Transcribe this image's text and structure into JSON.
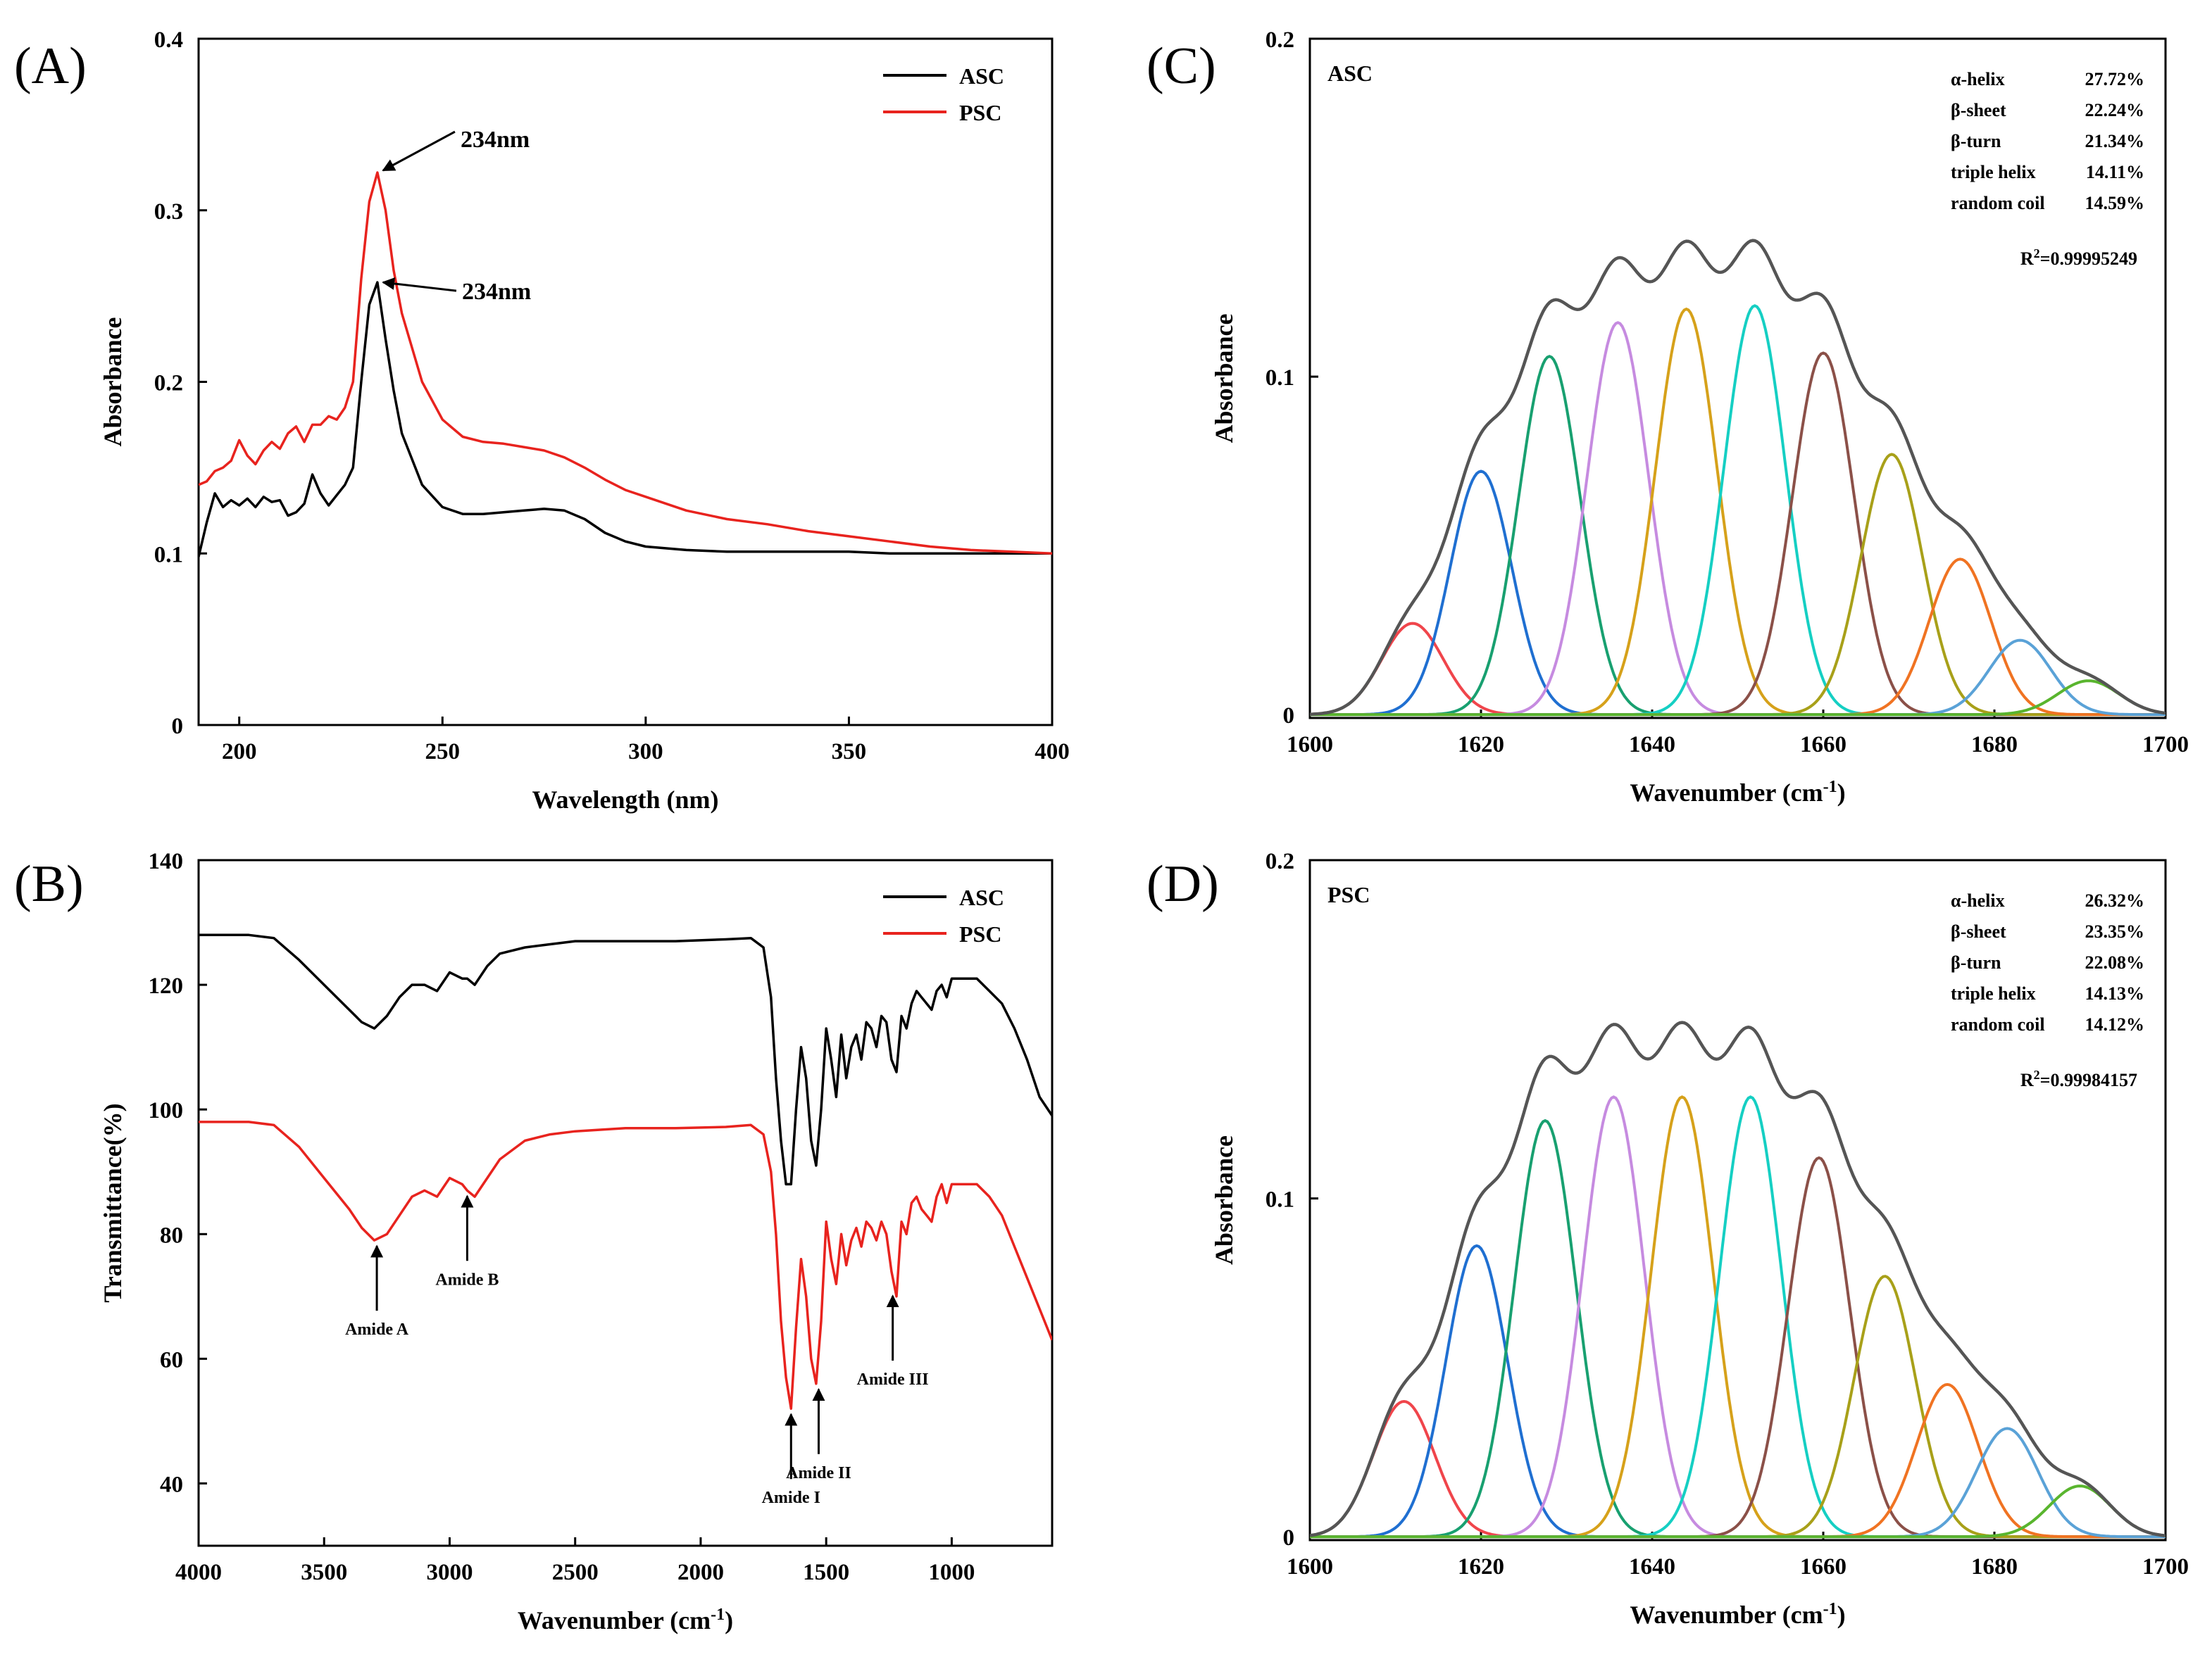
{
  "colors": {
    "asc": "#000000",
    "psc": "#e8231e",
    "envelope": "#555555",
    "bands": [
      "#f0454b",
      "#1f6fd1",
      "#18a070",
      "#c68be0",
      "#d6a11a",
      "#15cfc3",
      "#8b5048",
      "#a8a019",
      "#f07322",
      "#5aa2d7",
      "#59b52e"
    ]
  },
  "chart_data": [
    {
      "id": "A",
      "type": "line",
      "panel_label": "(A)",
      "xlabel": "Wavelength (nm)",
      "ylabel": "Absorbance",
      "xlim": [
        190,
        400
      ],
      "ylim": [
        0,
        0.4
      ],
      "xticks": [
        {
          "v": 200,
          "label": "200"
        },
        {
          "v": 250,
          "label": "250"
        },
        {
          "v": 300,
          "label": "300"
        },
        {
          "v": 350,
          "label": "350"
        },
        {
          "v": 400,
          "label": "400"
        }
      ],
      "yticks": [
        {
          "v": 0,
          "label": "0"
        },
        {
          "v": 0.1,
          "label": "0.1"
        },
        {
          "v": 0.2,
          "label": "0.2"
        },
        {
          "v": 0.3,
          "label": "0.3"
        },
        {
          "v": 0.4,
          "label": "0.4"
        }
      ],
      "legend": [
        "ASC",
        "PSC"
      ],
      "series": [
        {
          "name": "ASC",
          "x": [
            190,
            192,
            194,
            196,
            198,
            200,
            202,
            204,
            206,
            208,
            210,
            212,
            214,
            216,
            218,
            220,
            222,
            224,
            226,
            228,
            230,
            232,
            234,
            236,
            238,
            240,
            245,
            250,
            255,
            260,
            265,
            270,
            275,
            280,
            285,
            290,
            295,
            300,
            310,
            320,
            330,
            340,
            350,
            360,
            370,
            380,
            390,
            400
          ],
          "y": [
            0.098,
            0.118,
            0.135,
            0.127,
            0.131,
            0.128,
            0.132,
            0.127,
            0.133,
            0.13,
            0.131,
            0.122,
            0.124,
            0.129,
            0.146,
            0.135,
            0.128,
            0.134,
            0.14,
            0.15,
            0.2,
            0.245,
            0.258,
            0.225,
            0.195,
            0.17,
            0.14,
            0.127,
            0.123,
            0.123,
            0.124,
            0.125,
            0.126,
            0.125,
            0.12,
            0.112,
            0.107,
            0.104,
            0.102,
            0.101,
            0.101,
            0.101,
            0.101,
            0.1,
            0.1,
            0.1,
            0.1,
            0.1
          ]
        },
        {
          "name": "PSC",
          "x": [
            190,
            192,
            194,
            196,
            198,
            200,
            202,
            204,
            206,
            208,
            210,
            212,
            214,
            216,
            218,
            220,
            222,
            224,
            226,
            228,
            230,
            232,
            234,
            236,
            238,
            240,
            245,
            250,
            255,
            260,
            265,
            270,
            275,
            280,
            285,
            290,
            295,
            300,
            310,
            320,
            330,
            340,
            350,
            360,
            370,
            380,
            390,
            400
          ],
          "y": [
            0.14,
            0.142,
            0.148,
            0.15,
            0.154,
            0.166,
            0.157,
            0.152,
            0.16,
            0.165,
            0.161,
            0.17,
            0.174,
            0.165,
            0.175,
            0.175,
            0.18,
            0.178,
            0.185,
            0.2,
            0.26,
            0.305,
            0.322,
            0.3,
            0.265,
            0.24,
            0.2,
            0.178,
            0.168,
            0.165,
            0.164,
            0.162,
            0.16,
            0.156,
            0.15,
            0.143,
            0.137,
            0.133,
            0.125,
            0.12,
            0.117,
            0.113,
            0.11,
            0.107,
            0.104,
            0.102,
            0.101,
            0.1
          ]
        }
      ],
      "annotations": [
        {
          "text": "234nm",
          "series": "PSC",
          "x": 234,
          "y": 0.322
        },
        {
          "text": "234nm",
          "series": "ASC",
          "x": 234,
          "y": 0.258
        }
      ]
    },
    {
      "id": "B",
      "type": "line",
      "panel_label": "(B)",
      "xlabel": "Wavenumber (cm",
      "xlabel_sup": "-1",
      "xlabel_end": ")",
      "ylabel": "Transmittance(%)",
      "xlim": [
        4000,
        600
      ],
      "ylim": [
        30,
        140
      ],
      "xticks": [
        {
          "v": 4000,
          "label": "4000"
        },
        {
          "v": 3500,
          "label": "3500"
        },
        {
          "v": 3000,
          "label": "3000"
        },
        {
          "v": 2500,
          "label": "2500"
        },
        {
          "v": 2000,
          "label": "2000"
        },
        {
          "v": 1500,
          "label": "1500"
        },
        {
          "v": 1000,
          "label": "1000"
        }
      ],
      "yticks": [
        {
          "v": 40,
          "label": "40"
        },
        {
          "v": 60,
          "label": "60"
        },
        {
          "v": 80,
          "label": "80"
        },
        {
          "v": 100,
          "label": "100"
        },
        {
          "v": 120,
          "label": "120"
        },
        {
          "v": 140,
          "label": "140"
        }
      ],
      "legend": [
        "ASC",
        "PSC"
      ],
      "series": [
        {
          "name": "ASC",
          "x": [
            4000,
            3800,
            3700,
            3600,
            3500,
            3400,
            3350,
            3300,
            3250,
            3200,
            3150,
            3100,
            3050,
            3000,
            2950,
            2930,
            2900,
            2850,
            2800,
            2700,
            2600,
            2500,
            2300,
            2100,
            1900,
            1800,
            1750,
            1720,
            1700,
            1680,
            1660,
            1640,
            1620,
            1600,
            1580,
            1560,
            1540,
            1520,
            1500,
            1480,
            1460,
            1440,
            1420,
            1400,
            1380,
            1360,
            1340,
            1320,
            1300,
            1280,
            1260,
            1240,
            1220,
            1200,
            1180,
            1160,
            1140,
            1120,
            1100,
            1080,
            1060,
            1040,
            1020,
            1000,
            950,
            900,
            850,
            800,
            750,
            700,
            650,
            600
          ],
          "y": [
            128,
            128,
            127.5,
            124,
            120,
            116,
            114,
            113,
            115,
            118,
            120,
            120,
            119,
            122,
            121,
            121,
            120,
            123,
            125,
            126,
            126.5,
            127,
            127,
            127,
            127.3,
            127.5,
            126,
            118,
            105,
            95,
            88,
            88,
            100,
            110,
            105,
            95,
            91,
            100,
            113,
            108,
            102,
            112,
            105,
            110,
            112,
            108,
            114,
            113,
            110,
            115,
            114,
            108,
            106,
            115,
            113,
            117,
            119,
            118,
            117,
            116,
            119,
            120,
            118,
            121,
            121,
            121,
            119,
            117,
            113,
            108,
            102,
            99
          ]
        },
        {
          "name": "PSC",
          "x": [
            4000,
            3800,
            3700,
            3600,
            3500,
            3400,
            3350,
            3300,
            3250,
            3200,
            3150,
            3100,
            3050,
            3000,
            2950,
            2930,
            2900,
            2850,
            2800,
            2700,
            2600,
            2500,
            2300,
            2100,
            1900,
            1800,
            1750,
            1720,
            1700,
            1680,
            1660,
            1640,
            1620,
            1600,
            1580,
            1560,
            1540,
            1520,
            1500,
            1480,
            1460,
            1440,
            1420,
            1400,
            1380,
            1360,
            1340,
            1320,
            1300,
            1280,
            1260,
            1240,
            1220,
            1200,
            1180,
            1160,
            1140,
            1120,
            1100,
            1080,
            1060,
            1040,
            1020,
            1000,
            950,
            900,
            850,
            800,
            750,
            700,
            650,
            600
          ],
          "y": [
            98,
            98,
            97.5,
            94,
            89,
            84,
            81,
            79,
            80,
            83,
            86,
            87,
            86,
            89,
            88,
            87,
            86,
            89,
            92,
            95,
            96,
            96.5,
            97,
            97,
            97.2,
            97.5,
            96,
            90,
            80,
            66,
            57,
            52,
            65,
            76,
            70,
            60,
            56,
            66,
            82,
            76,
            72,
            80,
            75,
            79,
            81,
            78,
            82,
            81,
            79,
            82,
            80,
            74,
            70,
            82,
            80,
            85,
            86,
            84,
            83,
            82,
            86,
            88,
            85,
            88,
            88,
            88,
            86,
            83,
            78,
            73,
            68,
            63
          ]
        }
      ],
      "annotations": [
        {
          "text": "Amide A",
          "x": 3290,
          "y": 79,
          "dir": "up"
        },
        {
          "text": "Amide B",
          "x": 2930,
          "y": 87,
          "dir": "up"
        },
        {
          "text": "Amide I",
          "x": 1640,
          "y": 52,
          "dir": "up"
        },
        {
          "text": "Amide II",
          "x": 1530,
          "y": 56,
          "dir": "up"
        },
        {
          "text": "Amide III",
          "x": 1235,
          "y": 71,
          "dir": "up"
        }
      ]
    },
    {
      "id": "C",
      "type": "line",
      "panel_label": "(C)",
      "sample": "ASC",
      "xlabel": "Wavenumber (cm",
      "xlabel_sup": "-1",
      "xlabel_end": ")",
      "ylabel": "Absorbance",
      "xlim": [
        1600,
        1700
      ],
      "ylim": [
        -0.001,
        0.2
      ],
      "xticks": [
        {
          "v": 1600,
          "label": "1600"
        },
        {
          "v": 1620,
          "label": "1620"
        },
        {
          "v": 1640,
          "label": "1640"
        },
        {
          "v": 1660,
          "label": "1660"
        },
        {
          "v": 1680,
          "label": "1680"
        },
        {
          "v": 1700,
          "label": "1700"
        }
      ],
      "yticks": [
        {
          "v": 0,
          "label": "0"
        },
        {
          "v": 0.1,
          "label": "0.1"
        },
        {
          "v": 0.2,
          "label": "0.2"
        }
      ],
      "bands": [
        {
          "center": 1612,
          "height": 0.027,
          "sigma": 3.6
        },
        {
          "center": 1620,
          "height": 0.072,
          "sigma": 3.6
        },
        {
          "center": 1628,
          "height": 0.106,
          "sigma": 3.6
        },
        {
          "center": 1636,
          "height": 0.116,
          "sigma": 3.6
        },
        {
          "center": 1644,
          "height": 0.12,
          "sigma": 3.6
        },
        {
          "center": 1652,
          "height": 0.121,
          "sigma": 3.6
        },
        {
          "center": 1660,
          "height": 0.107,
          "sigma": 3.6
        },
        {
          "center": 1668,
          "height": 0.077,
          "sigma": 3.6
        },
        {
          "center": 1676,
          "height": 0.046,
          "sigma": 3.6
        },
        {
          "center": 1683,
          "height": 0.022,
          "sigma": 3.6
        },
        {
          "center": 1691,
          "height": 0.01,
          "sigma": 3.6
        }
      ],
      "stats": [
        {
          "name": "α-helix",
          "value": "27.72%"
        },
        {
          "name": "β-sheet",
          "value": "22.24%"
        },
        {
          "name": "β-turn",
          "value": "21.34%"
        },
        {
          "name": "triple helix",
          "value": "14.11%"
        },
        {
          "name": "random coil",
          "value": "14.59%"
        }
      ],
      "r2_label": "R",
      "r2_sup": "2",
      "r2_value": "=0.99995249"
    },
    {
      "id": "D",
      "type": "line",
      "panel_label": "(D)",
      "sample": "PSC",
      "xlabel": "Wavenumber (cm",
      "xlabel_sup": "-1",
      "xlabel_end": ")",
      "ylabel": "Absorbance",
      "xlim": [
        1600,
        1700
      ],
      "ylim": [
        -0.001,
        0.2
      ],
      "xticks": [
        {
          "v": 1600,
          "label": "1600"
        },
        {
          "v": 1620,
          "label": "1620"
        },
        {
          "v": 1640,
          "label": "1640"
        },
        {
          "v": 1660,
          "label": "1660"
        },
        {
          "v": 1680,
          "label": "1680"
        },
        {
          "v": 1700,
          "label": "1700"
        }
      ],
      "yticks": [
        {
          "v": 0,
          "label": "0"
        },
        {
          "v": 0.1,
          "label": "0.1"
        },
        {
          "v": 0.2,
          "label": "0.2"
        }
      ],
      "bands": [
        {
          "center": 1611,
          "height": 0.04,
          "sigma": 3.6
        },
        {
          "center": 1619.5,
          "height": 0.086,
          "sigma": 3.6
        },
        {
          "center": 1627.5,
          "height": 0.123,
          "sigma": 3.6
        },
        {
          "center": 1635.5,
          "height": 0.13,
          "sigma": 3.6
        },
        {
          "center": 1643.5,
          "height": 0.13,
          "sigma": 3.6
        },
        {
          "center": 1651.5,
          "height": 0.13,
          "sigma": 3.6
        },
        {
          "center": 1659.5,
          "height": 0.112,
          "sigma": 3.6
        },
        {
          "center": 1667.2,
          "height": 0.077,
          "sigma": 3.6
        },
        {
          "center": 1674.5,
          "height": 0.045,
          "sigma": 3.6
        },
        {
          "center": 1681.5,
          "height": 0.032,
          "sigma": 3.6
        },
        {
          "center": 1690,
          "height": 0.015,
          "sigma": 3.6
        }
      ],
      "stats": [
        {
          "name": "α-helix",
          "value": "26.32%"
        },
        {
          "name": "β-sheet",
          "value": "23.35%"
        },
        {
          "name": "β-turn",
          "value": "22.08%"
        },
        {
          "name": "triple helix",
          "value": "14.13%"
        },
        {
          "name": "random coil",
          "value": "14.12%"
        }
      ],
      "r2_label": "R",
      "r2_sup": "2",
      "r2_value": "=0.99984157"
    }
  ]
}
